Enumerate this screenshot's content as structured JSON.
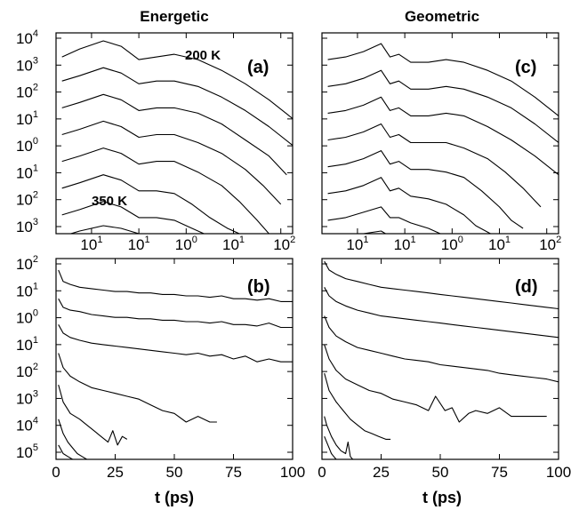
{
  "columns": {
    "left": "Energetic",
    "right": "Geometric"
  },
  "xlabel": "t (ps)",
  "annotations": {
    "top": "200 K",
    "bottom": "350 K"
  },
  "chart_data": [
    {
      "panel": "(a)",
      "type": "line",
      "column": "Energetic",
      "x_tick_labels": [
        {
          "base": "10",
          "exp": "1"
        },
        {
          "base": "10",
          "exp": "1"
        },
        {
          "base": "10",
          "exp": "0"
        },
        {
          "base": "10",
          "exp": "1"
        },
        {
          "base": "10",
          "exp": "2"
        }
      ],
      "y_tick_labels": [
        {
          "base": "10",
          "exp": "4"
        },
        {
          "base": "10",
          "exp": "3"
        },
        {
          "base": "10",
          "exp": "2"
        },
        {
          "base": "10",
          "exp": "1"
        },
        {
          "base": "10",
          "exp": "0"
        },
        {
          "base": "10",
          "exp": "1"
        },
        {
          "base": "10",
          "exp": "2"
        },
        {
          "base": "10",
          "exp": "3"
        }
      ],
      "xlim": [
        -2,
        2
      ],
      "ylim": [
        -3.5,
        4
      ],
      "annotations": [
        "200 K",
        "350 K"
      ],
      "series": [
        {
          "x": [
            -1.9,
            -1.6,
            -1.2,
            -0.9,
            -0.6,
            -0.3,
            0.0,
            0.4,
            0.8,
            1.2,
            1.6,
            2.0
          ],
          "y": [
            3.1,
            3.4,
            3.7,
            3.5,
            3.0,
            3.1,
            3.2,
            3.0,
            2.6,
            2.1,
            1.5,
            0.8
          ]
        },
        {
          "x": [
            -1.9,
            -1.6,
            -1.2,
            -0.9,
            -0.6,
            -0.3,
            0.0,
            0.4,
            0.8,
            1.2,
            1.6,
            2.0
          ],
          "y": [
            2.2,
            2.4,
            2.7,
            2.5,
            2.1,
            2.2,
            2.2,
            2.0,
            1.6,
            1.1,
            0.5,
            -0.2
          ]
        },
        {
          "x": [
            -1.9,
            -1.6,
            -1.2,
            -0.9,
            -0.6,
            -0.3,
            0.0,
            0.4,
            0.8,
            1.2,
            1.6,
            1.9
          ],
          "y": [
            1.2,
            1.4,
            1.7,
            1.5,
            1.1,
            1.2,
            1.2,
            1.0,
            0.6,
            0.0,
            -0.6,
            -1.3
          ]
        },
        {
          "x": [
            -1.9,
            -1.6,
            -1.2,
            -0.9,
            -0.6,
            -0.3,
            0.0,
            0.4,
            0.8,
            1.2,
            1.5,
            1.8
          ],
          "y": [
            0.2,
            0.4,
            0.7,
            0.5,
            0.1,
            0.2,
            0.2,
            -0.1,
            -0.5,
            -1.1,
            -1.7,
            -2.4
          ]
        },
        {
          "x": [
            -1.9,
            -1.6,
            -1.2,
            -0.9,
            -0.6,
            -0.3,
            0.0,
            0.4,
            0.8,
            1.1,
            1.4,
            1.6
          ],
          "y": [
            -0.8,
            -0.6,
            -0.3,
            -0.5,
            -0.9,
            -0.8,
            -0.8,
            -1.2,
            -1.7,
            -2.3,
            -3.0,
            -3.5
          ]
        },
        {
          "x": [
            -1.9,
            -1.6,
            -1.2,
            -0.9,
            -0.6,
            -0.3,
            0.0,
            0.3,
            0.6,
            0.9,
            1.1,
            1.25
          ],
          "y": [
            -1.8,
            -1.6,
            -1.3,
            -1.5,
            -1.9,
            -1.9,
            -2.0,
            -2.4,
            -2.9,
            -3.3,
            -3.5,
            -3.5
          ]
        },
        {
          "x": [
            -1.9,
            -1.6,
            -1.2,
            -0.9,
            -0.6,
            -0.3,
            0.0,
            0.3,
            0.5,
            0.7,
            0.85
          ],
          "y": [
            -2.8,
            -2.6,
            -2.3,
            -2.5,
            -2.9,
            -2.9,
            -3.0,
            -3.3,
            -3.5,
            -3.5,
            -3.5
          ]
        },
        {
          "x": [
            -1.9,
            -1.6,
            -1.2,
            -0.9,
            -0.6,
            -0.3,
            -0.1,
            0.1
          ],
          "y": [
            -3.6,
            -3.4,
            -3.2,
            -3.3,
            -3.5,
            -3.6,
            -3.7,
            -3.8
          ]
        }
      ]
    },
    {
      "panel": "(b)",
      "type": "line",
      "column": "Energetic",
      "x_tick_labels": [
        "0",
        "25",
        "50",
        "75",
        "100"
      ],
      "y_tick_labels": [
        {
          "base": "10",
          "exp": "2"
        },
        {
          "base": "10",
          "exp": "1"
        },
        {
          "base": "10",
          "exp": "0"
        },
        {
          "base": "10",
          "exp": "1"
        },
        {
          "base": "10",
          "exp": "2"
        },
        {
          "base": "10",
          "exp": "3"
        },
        {
          "base": "10",
          "exp": "4"
        },
        {
          "base": "10",
          "exp": "5"
        }
      ],
      "xlim": [
        0,
        100
      ],
      "ylim": [
        -5,
        2
      ],
      "series": [
        {
          "x": [
            1,
            3,
            6,
            10,
            15,
            20,
            25,
            30,
            35,
            40,
            45,
            50,
            55,
            60,
            65,
            70,
            75,
            80,
            85,
            90,
            95,
            100
          ],
          "y": [
            1.6,
            1.2,
            1.1,
            1.0,
            0.95,
            0.9,
            0.85,
            0.85,
            0.8,
            0.8,
            0.75,
            0.75,
            0.7,
            0.7,
            0.65,
            0.7,
            0.6,
            0.6,
            0.55,
            0.6,
            0.5,
            0.5
          ]
        },
        {
          "x": [
            1,
            3,
            6,
            10,
            15,
            20,
            25,
            30,
            35,
            40,
            45,
            50,
            55,
            60,
            65,
            70,
            75,
            80,
            85,
            90,
            95,
            100
          ],
          "y": [
            0.6,
            0.3,
            0.2,
            0.15,
            0.05,
            0.0,
            -0.05,
            -0.05,
            -0.1,
            -0.1,
            -0.15,
            -0.15,
            -0.2,
            -0.2,
            -0.25,
            -0.2,
            -0.3,
            -0.3,
            -0.35,
            -0.25,
            -0.4,
            -0.4
          ]
        },
        {
          "x": [
            1,
            3,
            6,
            10,
            15,
            20,
            25,
            30,
            35,
            40,
            45,
            50,
            55,
            60,
            65,
            70,
            75,
            80,
            85,
            90,
            95,
            100
          ],
          "y": [
            -0.3,
            -0.6,
            -0.75,
            -0.85,
            -0.95,
            -1.0,
            -1.05,
            -1.1,
            -1.15,
            -1.2,
            -1.25,
            -1.3,
            -1.35,
            -1.3,
            -1.4,
            -1.35,
            -1.5,
            -1.4,
            -1.6,
            -1.5,
            -1.6,
            -1.6
          ]
        },
        {
          "x": [
            1,
            3,
            6,
            10,
            15,
            20,
            25,
            30,
            35,
            40,
            45,
            50,
            55,
            60,
            65,
            68
          ],
          "y": [
            -1.3,
            -1.8,
            -2.1,
            -2.3,
            -2.5,
            -2.6,
            -2.7,
            -2.8,
            -2.9,
            -3.1,
            -3.3,
            -3.4,
            -3.7,
            -3.5,
            -3.7,
            -3.7
          ]
        },
        {
          "x": [
            1,
            3,
            6,
            10,
            13,
            16,
            19,
            22,
            24,
            26,
            28,
            30
          ],
          "y": [
            -2.4,
            -3.0,
            -3.4,
            -3.6,
            -3.8,
            -4.0,
            -4.2,
            -4.4,
            -4.0,
            -4.5,
            -4.2,
            -4.3
          ]
        },
        {
          "x": [
            1,
            3,
            5,
            7,
            9,
            11,
            13,
            15,
            17
          ],
          "y": [
            -3.6,
            -4.1,
            -4.4,
            -4.6,
            -4.8,
            -4.9,
            -5.0,
            -5.0,
            -5.0
          ]
        },
        {
          "x": [
            1,
            3,
            5,
            7,
            9,
            11
          ],
          "y": [
            -4.5,
            -4.8,
            -4.9,
            -5.0,
            -5.0,
            -5.0
          ]
        }
      ]
    },
    {
      "panel": "(c)",
      "type": "line",
      "column": "Geometric",
      "x_tick_labels": [
        {
          "base": "10",
          "exp": "1"
        },
        {
          "base": "10",
          "exp": "1"
        },
        {
          "base": "10",
          "exp": "0"
        },
        {
          "base": "10",
          "exp": "1"
        },
        {
          "base": "10",
          "exp": "2"
        }
      ],
      "xlim": [
        -2,
        2
      ],
      "ylim": [
        -3.5,
        4
      ],
      "series": [
        {
          "x": [
            -1.9,
            -1.6,
            -1.3,
            -1.0,
            -0.85,
            -0.7,
            -0.5,
            -0.2,
            0.1,
            0.4,
            0.8,
            1.2,
            1.6,
            2.0
          ],
          "y": [
            3.0,
            3.1,
            3.3,
            3.6,
            3.1,
            3.2,
            2.9,
            2.9,
            3.0,
            2.9,
            2.6,
            2.2,
            1.6,
            0.9
          ]
        },
        {
          "x": [
            -1.9,
            -1.6,
            -1.3,
            -1.0,
            -0.85,
            -0.7,
            -0.5,
            -0.2,
            0.1,
            0.4,
            0.8,
            1.2,
            1.6,
            2.0
          ],
          "y": [
            2.0,
            2.1,
            2.3,
            2.6,
            2.1,
            2.2,
            1.9,
            1.9,
            2.0,
            1.9,
            1.6,
            1.2,
            0.6,
            -0.1
          ]
        },
        {
          "x": [
            -1.9,
            -1.6,
            -1.3,
            -1.0,
            -0.85,
            -0.7,
            -0.5,
            -0.2,
            0.1,
            0.4,
            0.8,
            1.2,
            1.6,
            2.0
          ],
          "y": [
            1.0,
            1.1,
            1.3,
            1.6,
            1.1,
            1.2,
            0.9,
            0.9,
            1.0,
            0.9,
            0.5,
            0.0,
            -0.6,
            -1.3
          ]
        },
        {
          "x": [
            -1.9,
            -1.6,
            -1.3,
            -1.0,
            -0.85,
            -0.7,
            -0.5,
            -0.2,
            0.1,
            0.4,
            0.8,
            1.1,
            1.4,
            1.7
          ],
          "y": [
            0.0,
            0.1,
            0.3,
            0.6,
            0.1,
            0.2,
            -0.1,
            -0.1,
            -0.1,
            -0.3,
            -0.7,
            -1.2,
            -1.8,
            -2.5
          ]
        },
        {
          "x": [
            -1.9,
            -1.6,
            -1.3,
            -1.0,
            -0.85,
            -0.7,
            -0.5,
            -0.2,
            0.1,
            0.4,
            0.7,
            1.0,
            1.2,
            1.4
          ],
          "y": [
            -1.0,
            -0.9,
            -0.7,
            -0.4,
            -0.9,
            -0.8,
            -1.1,
            -1.1,
            -1.2,
            -1.4,
            -1.9,
            -2.5,
            -3.0,
            -3.3
          ]
        },
        {
          "x": [
            -1.9,
            -1.6,
            -1.3,
            -1.0,
            -0.85,
            -0.7,
            -0.5,
            -0.2,
            0.1,
            0.4,
            0.6,
            0.85
          ],
          "y": [
            -2.0,
            -1.9,
            -1.7,
            -1.4,
            -1.9,
            -1.8,
            -2.1,
            -2.2,
            -2.4,
            -2.8,
            -3.2,
            -3.5
          ]
        },
        {
          "x": [
            -1.9,
            -1.6,
            -1.3,
            -1.0,
            -0.85,
            -0.7,
            -0.5,
            -0.2,
            0.0,
            0.2
          ],
          "y": [
            -3.0,
            -2.9,
            -2.7,
            -2.5,
            -2.9,
            -2.9,
            -3.1,
            -3.3,
            -3.5,
            -3.6
          ]
        },
        {
          "x": [
            -1.9,
            -1.6,
            -1.3,
            -1.0,
            -0.85,
            -0.7,
            -0.55
          ],
          "y": [
            -3.7,
            -3.6,
            -3.5,
            -3.4,
            -3.6,
            -3.7,
            -3.8
          ]
        }
      ]
    },
    {
      "panel": "(d)",
      "type": "line",
      "column": "Geometric",
      "x_tick_labels": [
        "0",
        "25",
        "50",
        "75",
        "100"
      ],
      "xlim": [
        0,
        100
      ],
      "ylim": [
        -5,
        2
      ],
      "series": [
        {
          "x": [
            1,
            3,
            6,
            10,
            15,
            20,
            25,
            30,
            35,
            40,
            45,
            50,
            55,
            60,
            65,
            70,
            75,
            80,
            85,
            90,
            95,
            100
          ],
          "y": [
            1.9,
            1.6,
            1.45,
            1.3,
            1.2,
            1.1,
            1.0,
            0.95,
            0.9,
            0.85,
            0.8,
            0.75,
            0.7,
            0.65,
            0.6,
            0.55,
            0.5,
            0.45,
            0.4,
            0.35,
            0.3,
            0.25
          ]
        },
        {
          "x": [
            1,
            3,
            6,
            10,
            15,
            20,
            25,
            30,
            35,
            40,
            45,
            50,
            55,
            60,
            65,
            70,
            75,
            80,
            85,
            90,
            95,
            100
          ],
          "y": [
            1.0,
            0.7,
            0.5,
            0.35,
            0.2,
            0.1,
            0.0,
            -0.05,
            -0.1,
            -0.15,
            -0.2,
            -0.25,
            -0.3,
            -0.35,
            -0.4,
            -0.45,
            -0.5,
            -0.55,
            -0.6,
            -0.65,
            -0.7,
            -0.75
          ]
        },
        {
          "x": [
            1,
            3,
            6,
            10,
            15,
            20,
            25,
            30,
            35,
            40,
            45,
            50,
            55,
            60,
            65,
            70,
            75,
            80,
            85,
            90,
            95,
            100
          ],
          "y": [
            0.0,
            -0.4,
            -0.7,
            -0.9,
            -1.1,
            -1.2,
            -1.3,
            -1.4,
            -1.5,
            -1.55,
            -1.6,
            -1.7,
            -1.75,
            -1.8,
            -1.85,
            -1.9,
            -2.0,
            -2.05,
            -2.1,
            -2.15,
            -2.2,
            -2.3
          ]
        },
        {
          "x": [
            1,
            3,
            6,
            10,
            15,
            20,
            25,
            30,
            35,
            40,
            45,
            48,
            52,
            55,
            58,
            62,
            65,
            70,
            75,
            80,
            85,
            90,
            95
          ],
          "y": [
            -1.0,
            -1.5,
            -1.9,
            -2.2,
            -2.4,
            -2.6,
            -2.7,
            -2.9,
            -3.0,
            -3.1,
            -3.3,
            -2.8,
            -3.3,
            -3.2,
            -3.7,
            -3.4,
            -3.3,
            -3.4,
            -3.2,
            -3.5,
            -3.5,
            -3.5,
            -3.5
          ]
        },
        {
          "x": [
            1,
            3,
            6,
            9,
            12,
            15,
            18,
            21,
            24,
            27,
            29
          ],
          "y": [
            -2.0,
            -2.6,
            -3.0,
            -3.3,
            -3.6,
            -3.8,
            -4.0,
            -4.1,
            -4.2,
            -4.3,
            -4.3
          ]
        },
        {
          "x": [
            1,
            2,
            4,
            6,
            8,
            10,
            11,
            12,
            13
          ],
          "y": [
            -3.5,
            -3.8,
            -4.2,
            -4.5,
            -4.7,
            -4.8,
            -4.4,
            -4.9,
            -5.0
          ]
        },
        {
          "x": [
            1,
            2,
            3,
            4,
            5,
            6,
            8
          ],
          "y": [
            -4.2,
            -4.4,
            -4.6,
            -4.8,
            -4.9,
            -5.0,
            -5.0
          ]
        }
      ]
    }
  ]
}
